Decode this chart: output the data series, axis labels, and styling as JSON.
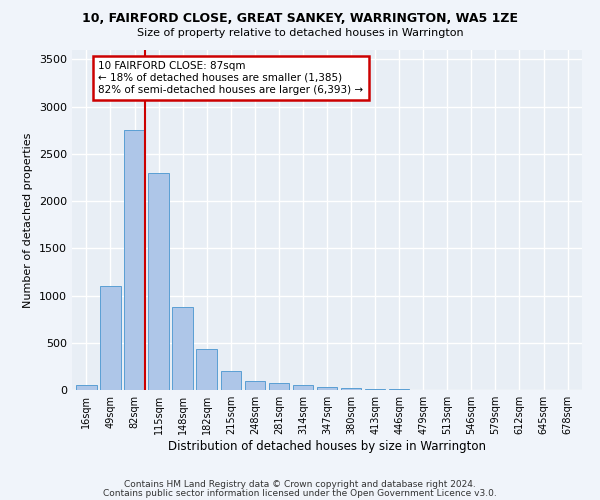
{
  "title1": "10, FAIRFORD CLOSE, GREAT SANKEY, WARRINGTON, WA5 1ZE",
  "title2": "Size of property relative to detached houses in Warrington",
  "xlabel": "Distribution of detached houses by size in Warrington",
  "ylabel": "Number of detached properties",
  "categories": [
    "16sqm",
    "49sqm",
    "82sqm",
    "115sqm",
    "148sqm",
    "182sqm",
    "215sqm",
    "248sqm",
    "281sqm",
    "314sqm",
    "347sqm",
    "380sqm",
    "413sqm",
    "446sqm",
    "479sqm",
    "513sqm",
    "546sqm",
    "579sqm",
    "612sqm",
    "645sqm",
    "678sqm"
  ],
  "values": [
    50,
    1100,
    2750,
    2300,
    880,
    430,
    200,
    100,
    75,
    50,
    30,
    20,
    15,
    10,
    5,
    3,
    2,
    1,
    1,
    0,
    0
  ],
  "bar_color": "#aec6e8",
  "bar_edge_color": "#5a9fd4",
  "vline_x": 2.42,
  "vline_color": "#cc0000",
  "annotation_text": "10 FAIRFORD CLOSE: 87sqm\n← 18% of detached houses are smaller (1,385)\n82% of semi-detached houses are larger (6,393) →",
  "annotation_box_color": "#ffffff",
  "annotation_box_edge": "#cc0000",
  "ylim": [
    0,
    3600
  ],
  "yticks": [
    0,
    500,
    1000,
    1500,
    2000,
    2500,
    3000,
    3500
  ],
  "bg_color": "#e8eef5",
  "grid_color": "#ffffff",
  "footer1": "Contains HM Land Registry data © Crown copyright and database right 2024.",
  "footer2": "Contains public sector information licensed under the Open Government Licence v3.0."
}
